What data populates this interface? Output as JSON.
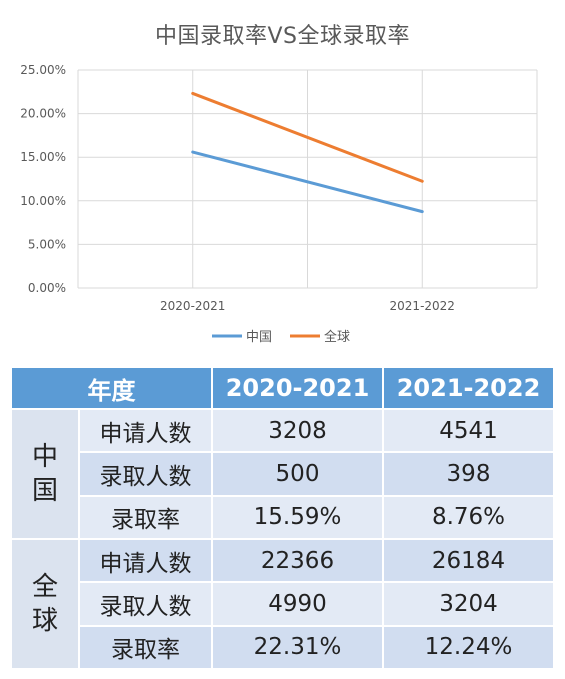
{
  "chart_data": {
    "type": "line",
    "title": "中国录取率VS全球录取率",
    "categories": [
      "2020-2021",
      "2021-2022"
    ],
    "series": [
      {
        "name": "中国",
        "values": [
          15.59,
          8.76
        ],
        "color": "#5b9bd5"
      },
      {
        "name": "全球",
        "values": [
          22.31,
          12.24
        ],
        "color": "#ed7d31"
      }
    ],
    "y_ticks": [
      "0.00%",
      "5.00%",
      "10.00%",
      "15.00%",
      "20.00%",
      "25.00%"
    ],
    "ylim": [
      0,
      25
    ],
    "grid": true,
    "legend_position": "bottom"
  },
  "table": {
    "header": {
      "col0": "年度",
      "col1": "2020-2021",
      "col2": "2021-2022"
    },
    "groups": [
      {
        "name": "中国",
        "chars": [
          "中",
          "国"
        ],
        "rows": [
          {
            "metric": "申请人数",
            "v1": "3208",
            "v2": "4541"
          },
          {
            "metric": "录取人数",
            "v1": "500",
            "v2": "398"
          },
          {
            "metric": "录取率",
            "v1": "15.59%",
            "v2": "8.76%"
          }
        ]
      },
      {
        "name": "全球",
        "chars": [
          "全",
          "球"
        ],
        "rows": [
          {
            "metric": "申请人数",
            "v1": "22366",
            "v2": "26184"
          },
          {
            "metric": "录取人数",
            "v1": "4990",
            "v2": "3204"
          },
          {
            "metric": "录取率",
            "v1": "22.31%",
            "v2": "12.24%"
          }
        ]
      }
    ]
  }
}
